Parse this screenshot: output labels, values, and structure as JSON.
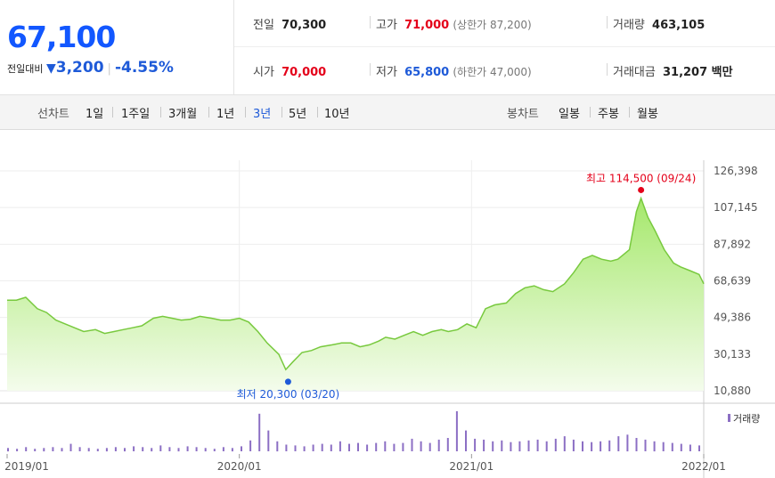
{
  "price": {
    "current": "67,100",
    "change_label": "전일대비",
    "change_arrow": "▼",
    "change_amount": "3,200",
    "change_pct": "-4.55%"
  },
  "info": {
    "prev_close_label": "전일",
    "prev_close": "70,300",
    "high_label": "고가",
    "high": "71,000",
    "upper_limit": "(상한가 87,200)",
    "volume_label": "거래량",
    "volume": "463,105",
    "open_label": "시가",
    "open": "70,000",
    "low_label": "저가",
    "low": "65,800",
    "lower_limit": "(하한가 47,000)",
    "trade_value_label": "거래대금",
    "trade_value": "31,207 백만"
  },
  "tabs": {
    "line_label": "선차트",
    "line_periods": [
      "1일",
      "1주일",
      "3개월",
      "1년",
      "3년",
      "5년",
      "10년"
    ],
    "active_period": "3년",
    "candle_label": "봉차트",
    "candle_periods": [
      "일봉",
      "주봉",
      "월봉"
    ]
  },
  "colors": {
    "price_blue": "#1257ff",
    "up_red": "#e4001a",
    "down_blue": "#1e5ad8",
    "area_top": "#a5e86b",
    "area_bottom": "#f4fcec",
    "line": "#78c93e",
    "volume_bar": "#8c6fc4"
  },
  "chart_data": {
    "type": "area",
    "y_ticks": [
      "126,398",
      "107,145",
      "87,892",
      "68,639",
      "49,386",
      "30,133",
      "10,880"
    ],
    "ylim": [
      10880,
      126398
    ],
    "x_ticks": [
      "2019/01",
      "2020/01",
      "2021/01",
      "2022/01"
    ],
    "high_annotation": {
      "text": "최고 114,500 (09/24)",
      "x": 2021.73,
      "y": 114500
    },
    "low_annotation": {
      "text": "최저 20,300 (03/20)",
      "x": 2020.21,
      "y": 20300
    },
    "volume_legend": "거래량",
    "grid": true,
    "series": [
      {
        "x": [
          2019.0,
          2019.04,
          2019.08,
          2019.13,
          2019.17,
          2019.21,
          2019.25,
          2019.29,
          2019.33,
          2019.38,
          2019.42,
          2019.46,
          2019.5,
          2019.54,
          2019.58,
          2019.63,
          2019.67,
          2019.71,
          2019.75,
          2019.79,
          2019.83,
          2019.88,
          2019.92,
          2019.96,
          2020.0,
          2020.04,
          2020.08,
          2020.12,
          2020.17,
          2020.2,
          2020.23,
          2020.27,
          2020.31,
          2020.35,
          2020.4,
          2020.44,
          2020.48,
          2020.52,
          2020.56,
          2020.6,
          2020.63,
          2020.67,
          2020.71,
          2020.75,
          2020.79,
          2020.83,
          2020.87,
          2020.9,
          2020.94,
          2020.98,
          2021.02,
          2021.06,
          2021.1,
          2021.15,
          2021.19,
          2021.23,
          2021.27,
          2021.31,
          2021.35,
          2021.4,
          2021.44,
          2021.48,
          2021.52,
          2021.56,
          2021.6,
          2021.63,
          2021.65,
          2021.68,
          2021.71,
          2021.73,
          2021.76,
          2021.79,
          2021.83,
          2021.87,
          2021.9,
          2021.94,
          2021.98,
          2022.0
        ],
        "y": [
          58500,
          58500,
          60000,
          54000,
          52000,
          48000,
          46000,
          44000,
          42000,
          43000,
          41000,
          42000,
          43000,
          44000,
          45000,
          49000,
          50000,
          49000,
          48000,
          48500,
          50000,
          49000,
          48000,
          48000,
          49000,
          47000,
          42000,
          36000,
          30000,
          22000,
          26000,
          31000,
          32000,
          34000,
          35000,
          36000,
          36000,
          34000,
          35000,
          37000,
          39000,
          38000,
          40000,
          42000,
          40000,
          42000,
          43000,
          42000,
          43000,
          46000,
          44000,
          54000,
          56000,
          57000,
          62000,
          65000,
          66000,
          64000,
          63000,
          67000,
          73000,
          80000,
          82000,
          80000,
          79000,
          80000,
          82000,
          85000,
          105000,
          112000,
          102000,
          95000,
          85000,
          78000,
          76000,
          74000,
          72000,
          67100
        ]
      }
    ],
    "volume": [
      4,
      3,
      5,
      3,
      4,
      5,
      4,
      9,
      5,
      4,
      3,
      4,
      5,
      4,
      6,
      5,
      4,
      7,
      5,
      4,
      6,
      5,
      4,
      3,
      5,
      4,
      6,
      13,
      45,
      25,
      12,
      8,
      7,
      6,
      8,
      9,
      8,
      12,
      9,
      10,
      8,
      10,
      12,
      9,
      10,
      15,
      12,
      10,
      14,
      16,
      48,
      25,
      15,
      14,
      12,
      13,
      11,
      12,
      13,
      14,
      12,
      15,
      18,
      14,
      12,
      11,
      12,
      13,
      18,
      20,
      16,
      14,
      12,
      11,
      10,
      9,
      8,
      7
    ]
  }
}
